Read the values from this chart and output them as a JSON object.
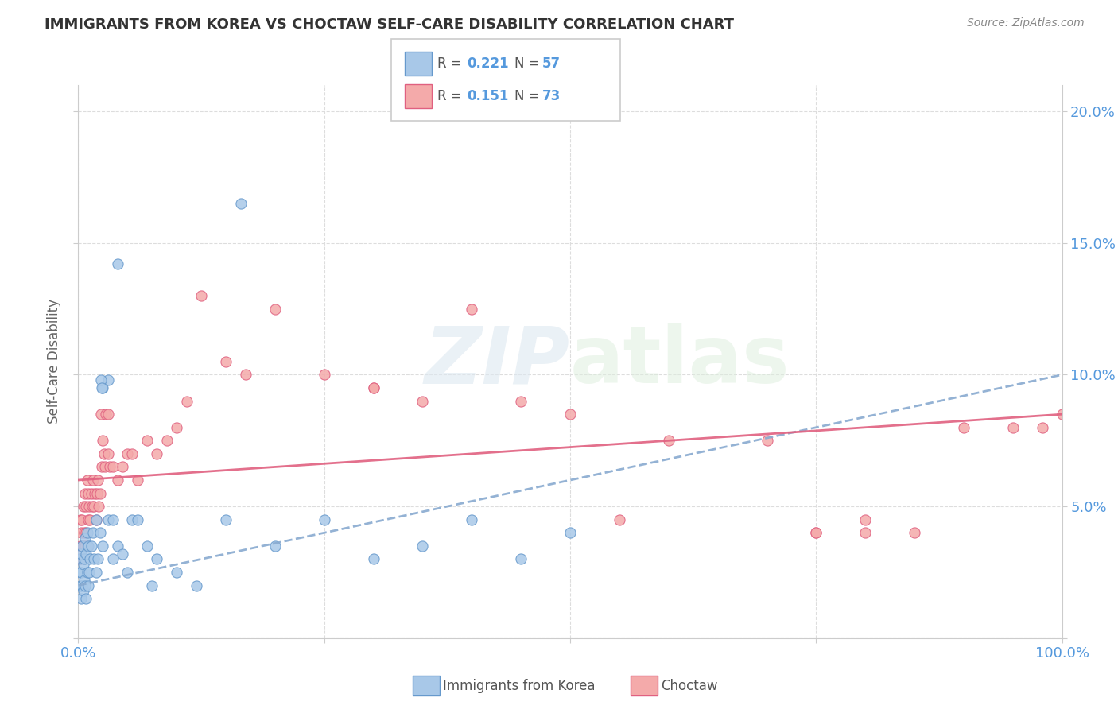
{
  "title": "IMMIGRANTS FROM KOREA VS CHOCTAW SELF-CARE DISABILITY CORRELATION CHART",
  "source": "Source: ZipAtlas.com",
  "ylabel": "Self-Care Disability",
  "legend_labels": [
    "Immigrants from Korea",
    "Choctaw"
  ],
  "korea_R": "0.221",
  "korea_N": "57",
  "choctaw_R": "0.151",
  "choctaw_N": "73",
  "korea_color": "#a8c8e8",
  "choctaw_color": "#f4aaaa",
  "korea_edge_color": "#6699cc",
  "choctaw_edge_color": "#e06080",
  "korea_line_color": "#88aad0",
  "choctaw_line_color": "#e08090",
  "axis_label_color": "#5599dd",
  "title_color": "#333333",
  "watermark_color": "#e0e8f0",
  "xlim": [
    0,
    100
  ],
  "ylim": [
    0,
    21
  ],
  "korea_x": [
    0.1,
    0.2,
    0.2,
    0.3,
    0.3,
    0.3,
    0.4,
    0.4,
    0.5,
    0.5,
    0.6,
    0.6,
    0.7,
    0.7,
    0.8,
    0.8,
    0.9,
    0.9,
    1.0,
    1.0,
    1.1,
    1.2,
    1.3,
    1.5,
    1.6,
    1.8,
    1.8,
    2.0,
    2.2,
    2.5,
    2.5,
    3.0,
    3.5,
    3.5,
    4.0,
    4.5,
    5.0,
    5.5,
    6.0,
    7.0,
    7.5,
    8.0,
    10.0,
    12.0,
    15.0,
    20.0,
    25.0,
    30.0,
    35.0,
    40.0,
    45.0,
    50.0,
    3.0,
    16.5,
    4.0,
    2.3,
    2.4
  ],
  "korea_y": [
    2.5,
    2.0,
    3.0,
    1.5,
    2.5,
    3.2,
    2.0,
    3.5,
    1.8,
    2.8,
    2.2,
    3.0,
    2.0,
    3.8,
    1.5,
    3.2,
    2.5,
    4.0,
    2.0,
    3.5,
    2.5,
    3.0,
    3.5,
    4.0,
    3.0,
    2.5,
    4.5,
    3.0,
    4.0,
    3.5,
    9.5,
    4.5,
    3.0,
    4.5,
    3.5,
    3.2,
    2.5,
    4.5,
    4.5,
    3.5,
    2.0,
    3.0,
    2.5,
    2.0,
    4.5,
    3.5,
    4.5,
    3.0,
    3.5,
    4.5,
    3.0,
    4.0,
    9.8,
    16.5,
    14.2,
    9.8,
    9.5
  ],
  "choctaw_x": [
    0.1,
    0.2,
    0.2,
    0.3,
    0.3,
    0.4,
    0.4,
    0.5,
    0.5,
    0.6,
    0.7,
    0.7,
    0.8,
    0.8,
    0.9,
    0.9,
    1.0,
    1.0,
    1.1,
    1.2,
    1.3,
    1.4,
    1.5,
    1.6,
    1.7,
    1.8,
    1.9,
    2.0,
    2.1,
    2.2,
    2.3,
    2.4,
    2.5,
    2.6,
    2.7,
    2.8,
    3.0,
    3.0,
    3.2,
    3.5,
    4.0,
    4.5,
    5.0,
    5.5,
    6.0,
    7.0,
    8.0,
    9.0,
    10.0,
    11.0,
    12.5,
    15.0,
    17.0,
    20.0,
    25.0,
    30.0,
    35.0,
    40.0,
    45.0,
    50.0,
    60.0,
    70.0,
    75.0,
    80.0,
    85.0,
    90.0,
    95.0,
    98.0,
    100.0,
    80.0,
    75.0,
    55.0,
    30.0
  ],
  "choctaw_y": [
    3.0,
    3.5,
    4.5,
    3.0,
    4.0,
    3.5,
    4.5,
    3.5,
    5.0,
    4.0,
    3.5,
    5.5,
    4.0,
    5.0,
    3.5,
    6.0,
    4.5,
    5.5,
    5.0,
    4.5,
    5.5,
    5.0,
    6.0,
    5.0,
    5.5,
    4.5,
    5.5,
    6.0,
    5.0,
    5.5,
    8.5,
    6.5,
    7.5,
    7.0,
    6.5,
    8.5,
    7.0,
    8.5,
    6.5,
    6.5,
    6.0,
    6.5,
    7.0,
    7.0,
    6.0,
    7.5,
    7.0,
    7.5,
    8.0,
    9.0,
    13.0,
    10.5,
    10.0,
    12.5,
    10.0,
    9.5,
    9.0,
    12.5,
    9.0,
    8.5,
    7.5,
    7.5,
    4.0,
    4.5,
    4.0,
    8.0,
    8.0,
    8.0,
    8.5,
    4.0,
    4.0,
    4.5,
    9.5
  ],
  "korea_trend_x": [
    0,
    50
  ],
  "korea_trend_y": [
    2.0,
    6.5
  ],
  "choctaw_trend_x": [
    0,
    100
  ],
  "choctaw_trend_y": [
    6.0,
    8.5
  ]
}
